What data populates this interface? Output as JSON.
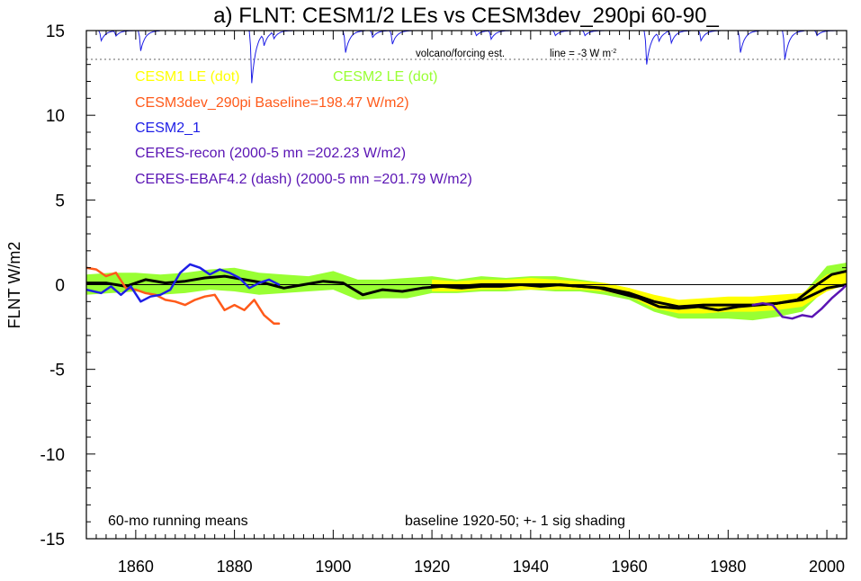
{
  "chart_data": {
    "type": "line",
    "title": "a) FLNT: CESM1/2 LEs vs CESM3dev_290pi 60-90_",
    "ylabel": "FLNT W/m2",
    "xlabel": "",
    "xlim": [
      1850,
      2004
    ],
    "ylim": [
      -15,
      15
    ],
    "x_ticks": [
      1860,
      1880,
      1900,
      1920,
      1940,
      1960,
      1980,
      2000
    ],
    "y_ticks": [
      -15,
      -10,
      -5,
      0,
      5,
      10,
      15
    ],
    "grid": false,
    "zero_line": true,
    "legend_placement": "top-left",
    "legend": [
      {
        "label": "CESM1 LE (dot)",
        "color": "#ffff00"
      },
      {
        "label": "CESM2 LE (dot)",
        "color": "#99ff33"
      },
      {
        "label": "CESM3dev_290pi Baseline=198.47 W/m2)",
        "color": "#ff5a1a"
      },
      {
        "label": "CESM2_1",
        "color": "#1e1ee6"
      },
      {
        "label": "CERES-recon (2000-5 mn =202.23 W/m2)",
        "color": "#5a14b4"
      },
      {
        "label": "CERES-EBAF4.2 (dash) (2000-5 mn =201.79 W/m2)",
        "color": "#5a14b4"
      }
    ],
    "volcano_label": "volcano/forcing est.",
    "volcano_line_label": "line = -3 W m",
    "volcano_line_sup": "-2",
    "volcano_line_value": 13.3,
    "footer_left": "60-mo running means",
    "footer_right": "baseline 1920-50; +- 1 sig shading",
    "series": [
      {
        "name": "CESM2 LE",
        "kind": "band",
        "color": "#99ff33",
        "x": [
          1850,
          1855,
          1860,
          1865,
          1870,
          1875,
          1880,
          1885,
          1890,
          1895,
          1900,
          1905,
          1910,
          1915,
          1920,
          1925,
          1930,
          1935,
          1940,
          1945,
          1950,
          1955,
          1960,
          1965,
          1970,
          1975,
          1980,
          1985,
          1990,
          1995,
          2000,
          2004
        ],
        "lo": [
          -0.6,
          -0.5,
          -0.4,
          -0.6,
          -0.5,
          -0.3,
          -0.4,
          -0.6,
          -0.5,
          -0.4,
          -0.3,
          -0.9,
          -0.8,
          -0.8,
          -0.5,
          -0.5,
          -0.4,
          -0.4,
          -0.3,
          -0.4,
          -0.4,
          -0.6,
          -0.9,
          -1.6,
          -2.0,
          -2.0,
          -2.0,
          -2.1,
          -1.9,
          -1.6,
          -0.2,
          0.2
        ],
        "hi": [
          0.6,
          0.7,
          0.7,
          0.6,
          0.7,
          0.9,
          1.0,
          0.7,
          0.6,
          0.5,
          0.8,
          0.3,
          0.3,
          0.4,
          0.5,
          0.3,
          0.5,
          0.4,
          0.5,
          0.5,
          0.3,
          0.1,
          -0.2,
          -0.7,
          -1.0,
          -0.9,
          -0.9,
          -0.9,
          -0.8,
          -0.6,
          1.1,
          1.3
        ]
      },
      {
        "name": "CESM1 LE",
        "kind": "band",
        "color": "#ffff00",
        "x": [
          1920,
          1925,
          1930,
          1935,
          1940,
          1945,
          1950,
          1955,
          1960,
          1965,
          1970,
          1975,
          1980,
          1985,
          1990,
          1995,
          2000,
          2004
        ],
        "lo": [
          -0.4,
          -0.4,
          -0.3,
          -0.3,
          -0.3,
          -0.3,
          -0.3,
          -0.4,
          -0.7,
          -1.4,
          -1.7,
          -1.7,
          -1.6,
          -1.6,
          -1.5,
          -1.3,
          -0.4,
          0.0
        ],
        "hi": [
          0.3,
          0.2,
          0.3,
          0.3,
          0.4,
          0.3,
          0.2,
          0.1,
          -0.2,
          -0.6,
          -0.9,
          -0.8,
          -0.7,
          -0.7,
          -0.6,
          -0.5,
          0.6,
          0.9
        ]
      },
      {
        "name": "CESM2 LE mean",
        "kind": "line",
        "color": "#000000",
        "width": 3,
        "x": [
          1850,
          1854,
          1858,
          1862,
          1866,
          1870,
          1874,
          1878,
          1882,
          1886,
          1890,
          1894,
          1898,
          1902,
          1906,
          1910,
          1914,
          1918,
          1922,
          1926,
          1930,
          1934,
          1938,
          1942,
          1946,
          1950,
          1954,
          1958,
          1962,
          1966,
          1970,
          1974,
          1978,
          1982,
          1986,
          1990,
          1994,
          1998,
          2001,
          2004
        ],
        "y": [
          0.1,
          0.1,
          -0.1,
          0.3,
          0.1,
          0.2,
          0.4,
          0.5,
          0.3,
          0.1,
          -0.2,
          0.0,
          0.2,
          0.1,
          -0.6,
          -0.3,
          -0.4,
          -0.2,
          -0.1,
          -0.2,
          -0.1,
          -0.1,
          0.0,
          -0.1,
          0.0,
          -0.1,
          -0.2,
          -0.5,
          -0.8,
          -1.3,
          -1.4,
          -1.3,
          -1.5,
          -1.3,
          -1.2,
          -1.1,
          -0.9,
          0.0,
          0.6,
          0.8
        ]
      },
      {
        "name": "CESM1 LE mean",
        "kind": "line",
        "color": "#000000",
        "width": 3,
        "x": [
          1920,
          1925,
          1930,
          1935,
          1940,
          1945,
          1950,
          1955,
          1960,
          1965,
          1970,
          1975,
          1980,
          1985,
          1990,
          1995,
          2000,
          2004
        ],
        "y": [
          -0.1,
          -0.1,
          0.0,
          0.0,
          0.0,
          0.0,
          -0.1,
          -0.2,
          -0.5,
          -1.0,
          -1.3,
          -1.2,
          -1.2,
          -1.2,
          -1.1,
          -0.9,
          -0.2,
          0.0
        ]
      },
      {
        "name": "CESM3dev_290pi",
        "kind": "line",
        "color": "#ff5a1a",
        "width": 2.5,
        "x": [
          1850,
          1852,
          1854,
          1856,
          1858,
          1860,
          1862,
          1864,
          1866,
          1868,
          1870,
          1872,
          1874,
          1876,
          1878,
          1880,
          1882,
          1884,
          1886,
          1888,
          1889
        ],
        "y": [
          1.0,
          0.9,
          0.5,
          0.7,
          -0.2,
          -0.3,
          -0.5,
          -0.6,
          -0.9,
          -1.0,
          -1.2,
          -0.9,
          -0.7,
          -0.6,
          -1.5,
          -1.2,
          -1.5,
          -0.9,
          -1.8,
          -2.3,
          -2.3
        ]
      },
      {
        "name": "CESM2_1",
        "kind": "line",
        "color": "#1e1ee6",
        "width": 2.5,
        "x": [
          1850,
          1853,
          1855,
          1857,
          1859,
          1861,
          1863,
          1865,
          1867,
          1869,
          1871,
          1873,
          1875,
          1877,
          1879,
          1881,
          1883,
          1885,
          1887,
          1889
        ],
        "y": [
          -0.3,
          -0.5,
          -0.1,
          -0.6,
          -0.1,
          -1.0,
          -0.7,
          -0.6,
          -0.3,
          0.7,
          1.2,
          1.0,
          0.6,
          0.9,
          0.7,
          0.4,
          -0.2,
          0.1,
          0.3,
          0.0
        ]
      },
      {
        "name": "CERES-recon",
        "kind": "line",
        "color": "#5a14b4",
        "width": 2.5,
        "x": [
          1985,
          1987,
          1989,
          1991,
          1993,
          1995,
          1997,
          1999,
          2001,
          2003,
          2004
        ],
        "y": [
          -1.2,
          -1.1,
          -1.2,
          -1.9,
          -2.0,
          -1.8,
          -1.9,
          -1.4,
          -0.8,
          -0.3,
          0.0
        ]
      }
    ],
    "volcano_trace": {
      "color": "#1e1ee6",
      "baseline": 15.0,
      "dips": [
        {
          "year": 1853,
          "depth": 0.6
        },
        {
          "year": 1856,
          "depth": 0.3
        },
        {
          "year": 1861,
          "depth": 1.2
        },
        {
          "year": 1883.5,
          "depth": 3.1
        },
        {
          "year": 1886,
          "depth": 0.7
        },
        {
          "year": 1888,
          "depth": 0.4
        },
        {
          "year": 1902.5,
          "depth": 1.3
        },
        {
          "year": 1908,
          "depth": 0.4
        },
        {
          "year": 1912,
          "depth": 0.8
        },
        {
          "year": 1929,
          "depth": 0.3
        },
        {
          "year": 1932,
          "depth": 0.5
        },
        {
          "year": 1945,
          "depth": 0.3
        },
        {
          "year": 1951,
          "depth": 0.3
        },
        {
          "year": 1963.5,
          "depth": 2.0
        },
        {
          "year": 1966,
          "depth": 0.5
        },
        {
          "year": 1968.5,
          "depth": 0.7
        },
        {
          "year": 1974.5,
          "depth": 0.6
        },
        {
          "year": 1982.5,
          "depth": 1.3
        },
        {
          "year": 1991.5,
          "depth": 1.7
        },
        {
          "year": 1998,
          "depth": 0.3
        }
      ]
    }
  }
}
